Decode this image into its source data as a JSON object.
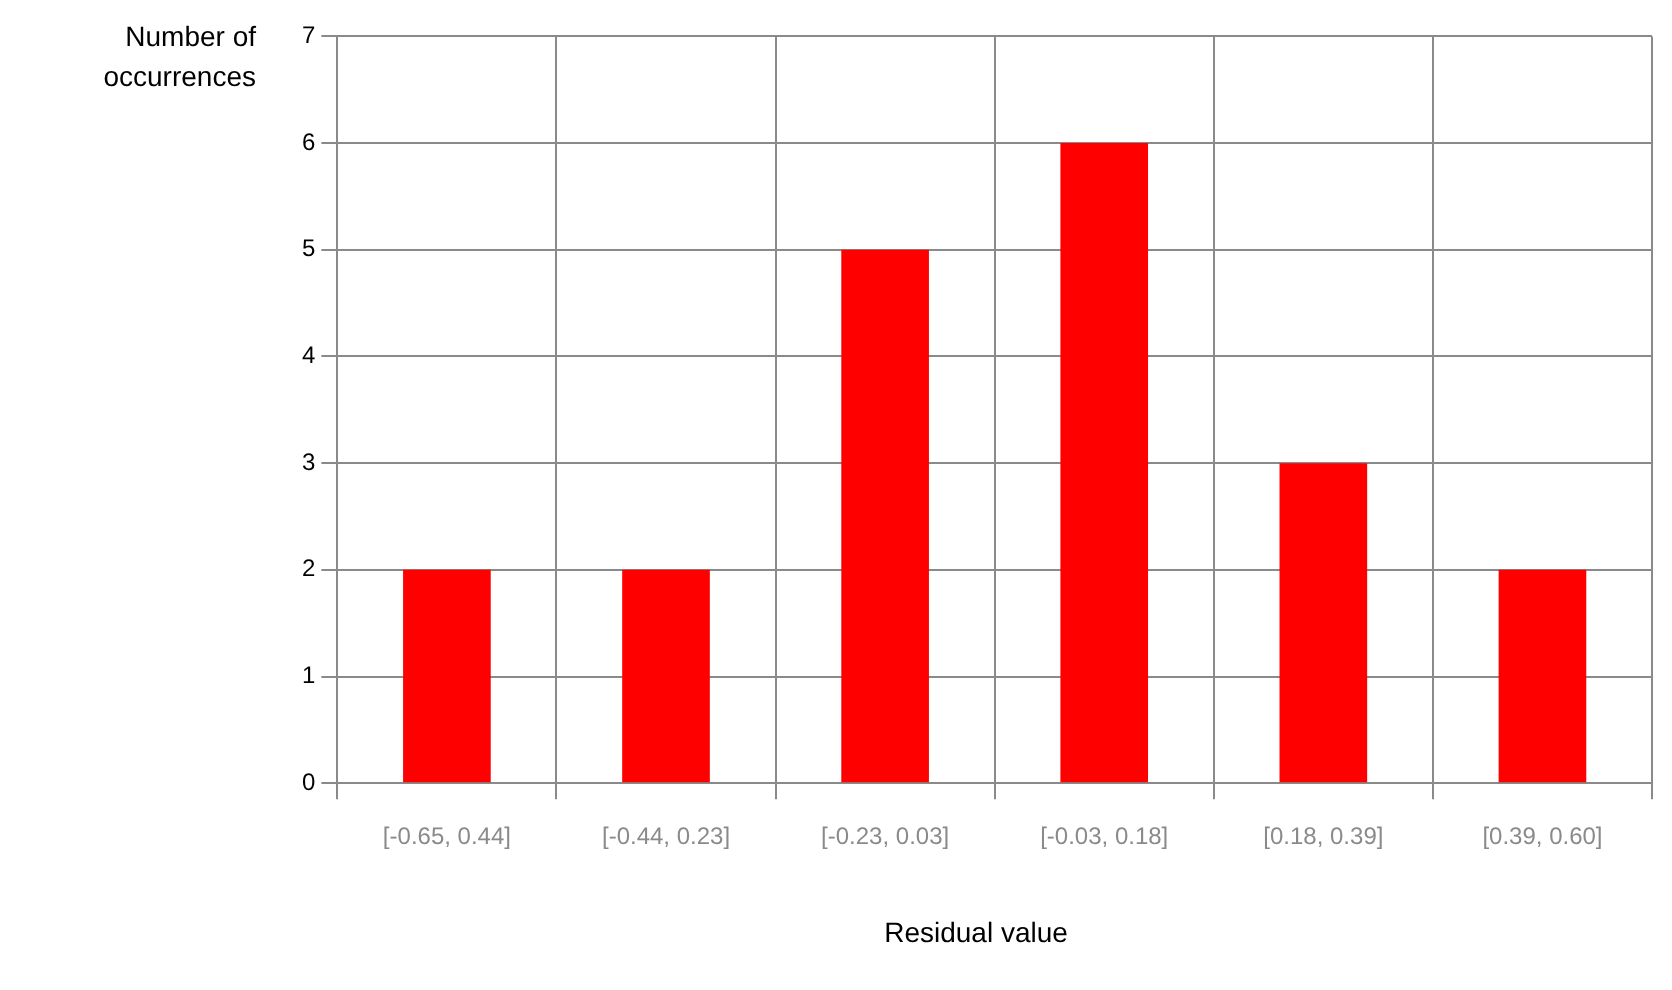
{
  "chart_data": {
    "type": "bar",
    "xlabel": "Residual value",
    "ylabel": "Number of occurrences",
    "categories": [
      "[-0.65, 0.44]",
      "[-0.44, 0.23]",
      "[-0.23, 0.03]",
      "[-0.03, 0.18]",
      "[0.18, 0.39]",
      "[0.39, 0.60]"
    ],
    "values": [
      2,
      2,
      5,
      6,
      3,
      2
    ],
    "color": "#ff0000",
    "ylim": [
      0,
      7
    ],
    "yticks": [
      0,
      1,
      2,
      3,
      4,
      5,
      6,
      7
    ],
    "grid": true,
    "legend": false
  }
}
